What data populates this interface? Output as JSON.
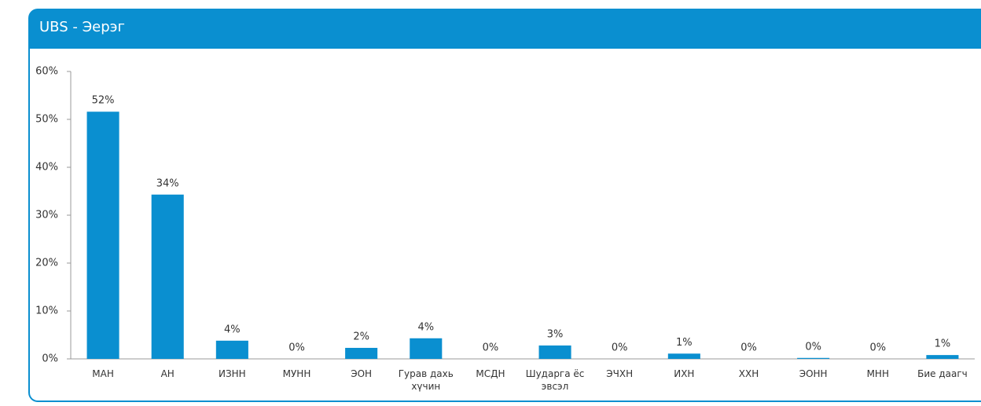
{
  "header": {
    "title": "UBS - Эерэг"
  },
  "chart_data": {
    "type": "bar",
    "categories": [
      "МАН",
      "АН",
      "ИЗНН",
      "МУНН",
      "ЭОН",
      "Гурав дахь хүчин",
      "МСДН",
      "Шударга ёс эвсэл",
      "ЭЧХН",
      "ИХН",
      "ХХН",
      "ЭОНН",
      "МНН",
      "Бие даагч"
    ],
    "values": [
      51.6,
      34.3,
      3.8,
      0,
      2.3,
      4.3,
      0,
      2.8,
      0,
      1.1,
      0,
      0.2,
      0,
      0.8
    ],
    "value_labels": [
      "52%",
      "34%",
      "4%",
      "0%",
      "2%",
      "4%",
      "0%",
      "3%",
      "0%",
      "1%",
      "0%",
      "0%",
      "0%",
      "1%"
    ],
    "color": "#0a8fd0",
    "ylim": [
      0,
      60
    ],
    "yticks": [
      {
        "value": 0,
        "label": "0%"
      },
      {
        "value": 10,
        "label": "10%"
      },
      {
        "value": 20,
        "label": "20%"
      },
      {
        "value": 30,
        "label": "30%"
      },
      {
        "value": 40,
        "label": "40%"
      },
      {
        "value": 50,
        "label": "50%"
      },
      {
        "value": 60,
        "label": "60%"
      }
    ],
    "grid": false
  }
}
